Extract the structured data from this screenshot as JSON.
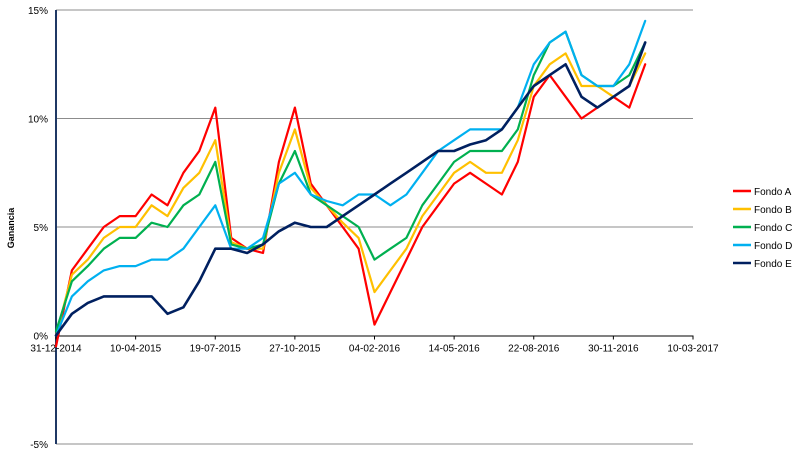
{
  "chart_data": {
    "type": "line",
    "title": "",
    "xlabel": "",
    "ylabel": "Ganancia",
    "x_ticks": [
      "31-12-2014",
      "10-04-2015",
      "19-07-2015",
      "27-10-2015",
      "04-02-2016",
      "14-05-2016",
      "22-08-2016",
      "30-11-2016",
      "10-03-2017"
    ],
    "y_ticks": [
      "-5%",
      "0%",
      "5%",
      "10%",
      "15%"
    ],
    "ylim": [
      -5,
      15
    ],
    "x_range": [
      "2014-12-31",
      "2017-03-10"
    ],
    "grid": "horizontal",
    "legend": "right",
    "dates": [
      "2014-12-31",
      "2015-01-20",
      "2015-02-09",
      "2015-03-01",
      "2015-03-21",
      "2015-04-10",
      "2015-04-30",
      "2015-05-20",
      "2015-06-09",
      "2015-06-29",
      "2015-07-19",
      "2015-08-08",
      "2015-08-28",
      "2015-09-17",
      "2015-10-07",
      "2015-10-27",
      "2015-11-16",
      "2015-12-06",
      "2015-12-26",
      "2016-01-15",
      "2016-02-04",
      "2016-02-24",
      "2016-03-15",
      "2016-04-04",
      "2016-04-24",
      "2016-05-14",
      "2016-06-03",
      "2016-06-23",
      "2016-07-13",
      "2016-08-02",
      "2016-08-22",
      "2016-09-11",
      "2016-10-01",
      "2016-10-21",
      "2016-11-10",
      "2016-11-30",
      "2016-12-20",
      "2017-01-09"
    ],
    "series": [
      {
        "name": "Fondo A",
        "color": "#ff0000",
        "values": [
          -0.5,
          3.0,
          4.0,
          5.0,
          5.5,
          5.5,
          6.5,
          6.0,
          7.5,
          8.5,
          10.5,
          4.5,
          4.0,
          3.8,
          8.0,
          10.5,
          7.0,
          6.0,
          5.0,
          4.0,
          0.5,
          2.0,
          3.5,
          5.0,
          6.0,
          7.0,
          7.5,
          7.0,
          6.5,
          8.0,
          11.0,
          12.0,
          11.0,
          10.0,
          10.5,
          11.0,
          10.5,
          12.5
        ]
      },
      {
        "name": "Fondo B",
        "color": "#ffc000",
        "values": [
          0.0,
          2.8,
          3.5,
          4.5,
          5.0,
          5.0,
          6.0,
          5.5,
          6.8,
          7.5,
          9.0,
          4.3,
          4.0,
          4.0,
          7.5,
          9.5,
          6.8,
          6.0,
          5.2,
          4.5,
          2.0,
          3.0,
          4.0,
          5.5,
          6.5,
          7.5,
          8.0,
          7.5,
          7.5,
          9.0,
          11.5,
          12.5,
          13.0,
          11.5,
          11.5,
          11.0,
          11.5,
          13.0
        ]
      },
      {
        "name": "Fondo C",
        "color": "#00b050",
        "values": [
          0.2,
          2.5,
          3.2,
          4.0,
          4.5,
          4.5,
          5.2,
          5.0,
          6.0,
          6.5,
          8.0,
          4.2,
          4.0,
          4.2,
          7.0,
          8.5,
          6.5,
          6.0,
          5.5,
          5.0,
          3.5,
          4.0,
          4.5,
          6.0,
          7.0,
          8.0,
          8.5,
          8.5,
          8.5,
          9.5,
          12.0,
          13.5,
          14.0,
          12.0,
          11.5,
          11.5,
          12.0,
          13.5
        ]
      },
      {
        "name": "Fondo D",
        "color": "#00b0f0",
        "values": [
          0.0,
          1.8,
          2.5,
          3.0,
          3.2,
          3.2,
          3.5,
          3.5,
          4.0,
          5.0,
          6.0,
          4.0,
          4.0,
          4.5,
          7.0,
          7.5,
          6.5,
          6.2,
          6.0,
          6.5,
          6.5,
          6.0,
          6.5,
          7.5,
          8.5,
          9.0,
          9.5,
          9.5,
          9.5,
          10.5,
          12.5,
          13.5,
          14.0,
          12.0,
          11.5,
          11.5,
          12.5,
          14.5
        ]
      },
      {
        "name": "Fondo E",
        "color": "#002060",
        "values": [
          0.0,
          1.0,
          1.5,
          1.8,
          1.8,
          1.8,
          1.8,
          1.0,
          1.3,
          2.5,
          4.0,
          4.0,
          3.8,
          4.2,
          4.8,
          5.2,
          5.0,
          5.0,
          5.5,
          6.0,
          6.5,
          7.0,
          7.5,
          8.0,
          8.5,
          8.5,
          8.8,
          9.0,
          9.5,
          10.5,
          11.5,
          12.0,
          12.5,
          11.0,
          10.5,
          11.0,
          11.5,
          13.5
        ]
      }
    ]
  }
}
